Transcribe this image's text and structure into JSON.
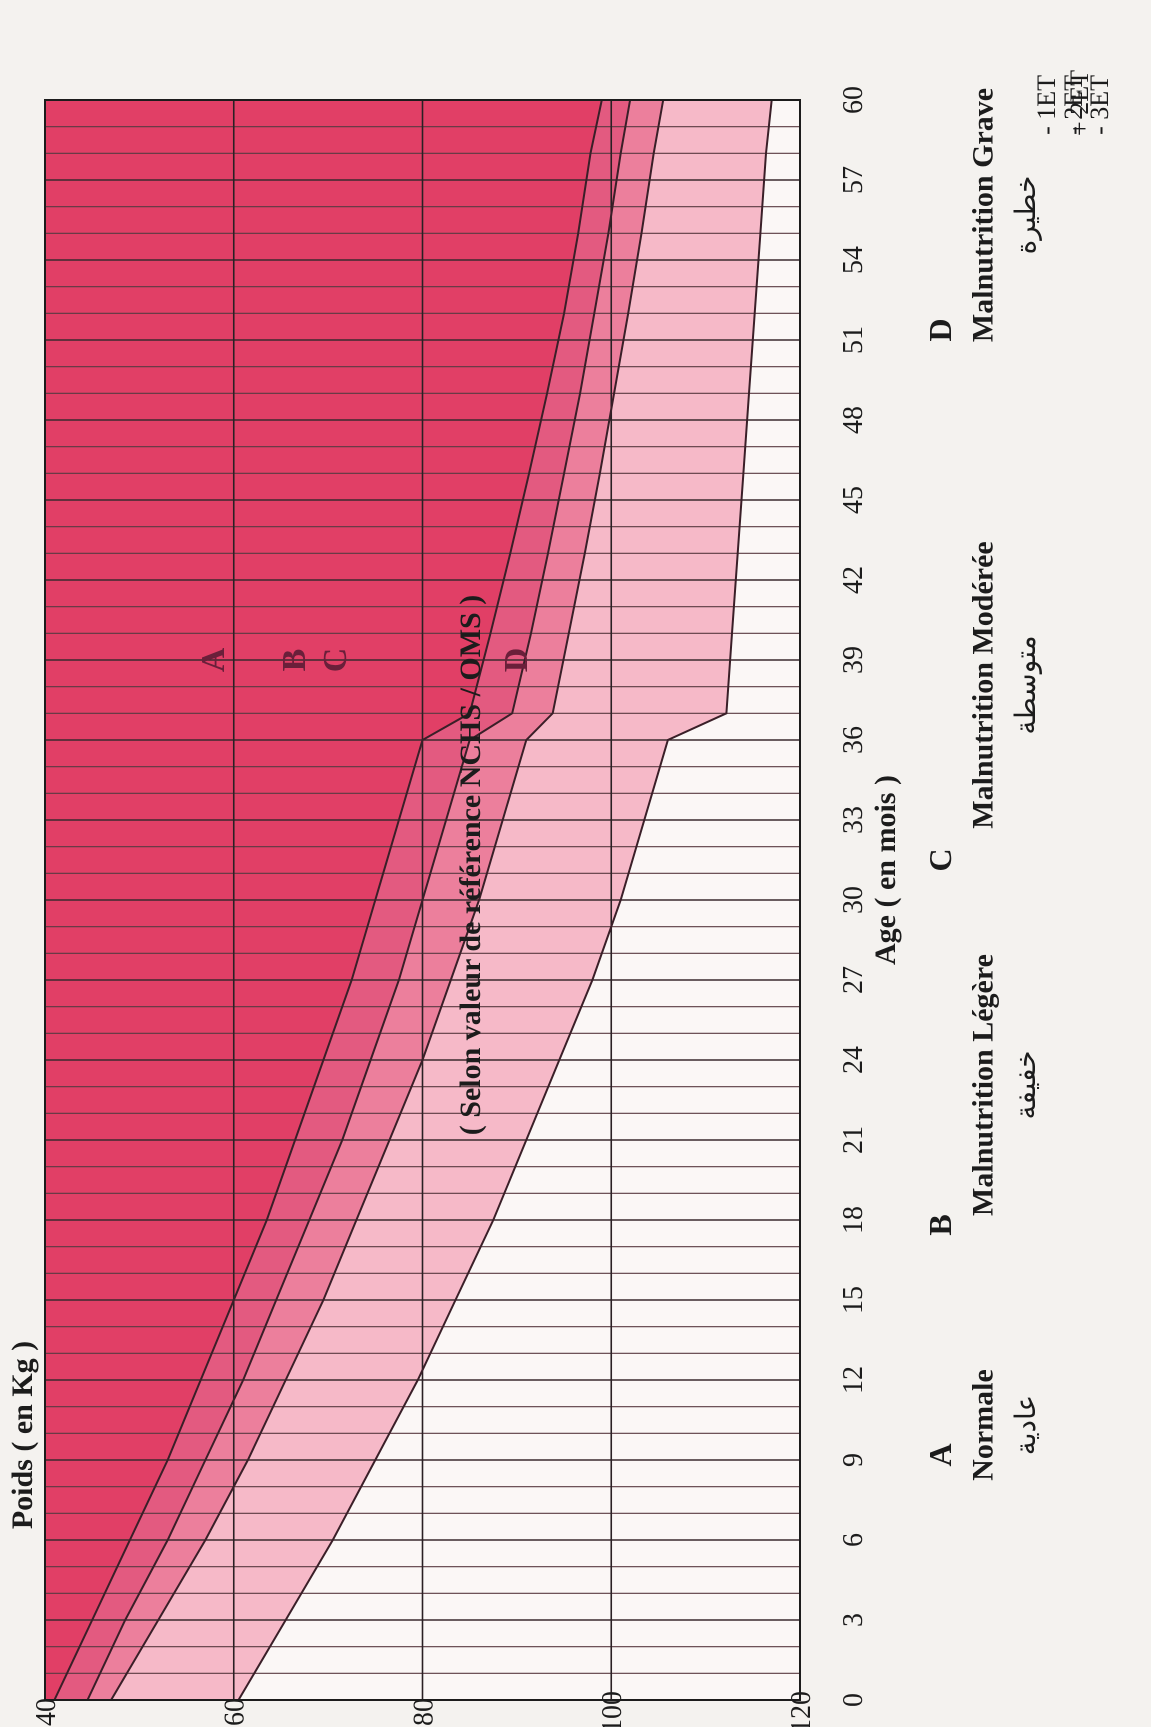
{
  "chart_data": {
    "type": "area",
    "orientation": "rotated-90-clockwise",
    "title": "( Selon valeur de référence NCHS / OMS )",
    "ylabel": "Poids ( en Kg )",
    "xlabel": "Age ( en mois )",
    "x_ticks": [
      "0",
      "3",
      "6",
      "9",
      "12",
      "15",
      "18",
      "21",
      "24",
      "27",
      "30",
      "33",
      "36",
      "39",
      "42",
      "45",
      "48",
      "51",
      "54",
      "57",
      "60"
    ],
    "y_ticks": [
      "40",
      "60",
      "80",
      "100",
      "120"
    ],
    "xlim": [
      0,
      60
    ],
    "ylim": [
      40,
      120
    ],
    "series": [
      {
        "name": "+ 2ET",
        "x": [
          0,
          3,
          6,
          9,
          12,
          15,
          18,
          21,
          24,
          27,
          30,
          33,
          36,
          37,
          40,
          43,
          46,
          49,
          52,
          55,
          58,
          60
        ],
        "y": [
          60.5,
          65.5,
          70.5,
          75,
          79.5,
          83.5,
          87.5,
          91,
          94.5,
          98,
          101,
          103.5,
          106,
          112.2,
          112.8,
          113.4,
          114,
          114.6,
          115.2,
          115.8,
          116.4,
          117
        ]
      },
      {
        "name": "- 1ET",
        "x": [
          0,
          3,
          6,
          9,
          12,
          15,
          18,
          21,
          24,
          27,
          30,
          33,
          36,
          37,
          40,
          43,
          46,
          49,
          52,
          55,
          58,
          60
        ],
        "y": [
          47,
          52,
          57,
          61.5,
          65.5,
          69.5,
          73,
          76.5,
          80,
          83,
          86,
          88.5,
          91,
          93.8,
          95.5,
          97.2,
          98.8,
          100.3,
          101.8,
          103.2,
          104.5,
          105.5
        ]
      },
      {
        "name": "- 2ET",
        "x": [
          0,
          3,
          6,
          9,
          12,
          15,
          18,
          21,
          24,
          27,
          30,
          33,
          36,
          37,
          40,
          43,
          46,
          49,
          52,
          55,
          58,
          60
        ],
        "y": [
          44.5,
          48.5,
          53,
          57,
          61,
          64.5,
          68,
          71.5,
          74.5,
          77.5,
          80,
          82.5,
          85,
          89.5,
          91.5,
          93.3,
          95,
          96.7,
          98.2,
          99.7,
          101,
          102
        ]
      },
      {
        "name": "- 3ET",
        "x": [
          0,
          3,
          6,
          9,
          12,
          15,
          18,
          21,
          24,
          27,
          30,
          33,
          36,
          37,
          40,
          43,
          46,
          49,
          52,
          55,
          58,
          60
        ],
        "y": [
          41,
          45,
          49,
          53,
          56.5,
          60,
          63.5,
          66.5,
          69.5,
          72.5,
          75,
          77.5,
          80,
          85,
          87.2,
          89.3,
          91.3,
          93.2,
          95,
          96.5,
          97.8,
          99
        ]
      }
    ],
    "zones": [
      {
        "letter": "A",
        "label": "Normale",
        "label_ar": "عادية"
      },
      {
        "letter": "B",
        "label": "Malnutrition Légère",
        "label_ar": "خفيفة"
      },
      {
        "letter": "C",
        "label": "Malnutrition Modérée",
        "label_ar": "متوسطة"
      },
      {
        "letter": "D",
        "label": "Malnutrition Grave",
        "label_ar": "خطيرة"
      }
    ],
    "zone_colors": {
      "above": "#fbf7f6",
      "A": "#f6b9c8",
      "B": "#ec7f9c",
      "C": "#e35a80",
      "D": "#e13f66"
    },
    "grid": true
  }
}
